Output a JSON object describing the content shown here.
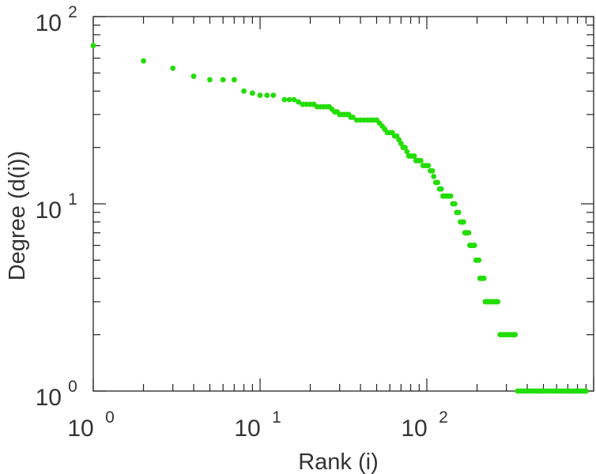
{
  "chart_data": {
    "type": "scatter",
    "title": "",
    "xlabel": "Rank (i)",
    "ylabel": "Degree (d(i))",
    "xscale": "log",
    "yscale": "log",
    "xlim": [
      1,
      1000
    ],
    "ylim": [
      1,
      100
    ],
    "grid": false,
    "legend": "none",
    "marker_color": "#22dd00",
    "x_ticks": [
      {
        "base": "10",
        "exp": "0"
      },
      {
        "base": "10",
        "exp": "1"
      },
      {
        "base": "10",
        "exp": "2"
      }
    ],
    "y_ticks": [
      {
        "base": "10",
        "exp": "0"
      },
      {
        "base": "10",
        "exp": "1"
      },
      {
        "base": "10",
        "exp": "2"
      }
    ],
    "series": [
      {
        "points": [
          [
            1,
            70
          ],
          [
            2,
            58
          ],
          [
            3,
            53
          ],
          [
            4,
            48
          ],
          [
            5,
            46
          ],
          [
            6,
            46
          ],
          [
            7,
            46
          ],
          [
            8,
            40
          ],
          [
            9,
            39
          ],
          [
            10,
            38
          ],
          [
            11,
            38
          ],
          [
            12,
            38
          ],
          [
            14,
            36
          ],
          [
            15,
            36
          ],
          [
            16,
            36
          ],
          [
            17,
            35
          ],
          [
            18,
            34
          ],
          [
            19,
            34
          ],
          [
            20,
            34
          ],
          [
            21,
            34
          ],
          [
            22,
            33
          ],
          [
            23,
            33
          ],
          [
            24,
            33
          ],
          [
            25,
            33
          ],
          [
            26,
            33
          ],
          [
            27,
            32
          ],
          [
            28,
            31
          ],
          [
            29,
            31
          ],
          [
            30,
            30
          ],
          [
            31,
            30
          ],
          [
            32,
            30
          ],
          [
            33,
            30
          ],
          [
            34,
            30
          ],
          [
            35,
            29
          ],
          [
            36,
            29
          ],
          [
            38,
            28
          ],
          [
            40,
            28
          ],
          [
            42,
            28
          ],
          [
            44,
            28
          ],
          [
            46,
            28
          ],
          [
            48,
            28
          ],
          [
            50,
            28
          ],
          [
            52,
            27
          ],
          [
            54,
            26
          ],
          [
            56,
            25
          ],
          [
            58,
            24
          ],
          [
            60,
            24
          ],
          [
            62,
            24
          ],
          [
            64,
            23
          ],
          [
            66,
            23
          ],
          [
            68,
            22
          ],
          [
            70,
            21
          ],
          [
            72,
            20
          ],
          [
            74,
            20
          ],
          [
            76,
            19
          ],
          [
            78,
            18
          ],
          [
            80,
            18
          ],
          [
            82,
            18
          ],
          [
            84,
            18
          ],
          [
            86,
            17
          ],
          [
            88,
            17
          ],
          [
            90,
            17
          ],
          [
            92,
            17
          ],
          [
            95,
            16
          ],
          [
            98,
            16
          ],
          [
            100,
            16
          ],
          [
            102,
            16
          ],
          [
            105,
            15
          ],
          [
            108,
            15
          ],
          [
            110,
            14
          ],
          [
            113,
            13
          ],
          [
            116,
            13
          ],
          [
            119,
            12
          ],
          [
            122,
            12
          ],
          [
            125,
            11
          ],
          [
            128,
            11
          ],
          [
            131,
            11
          ],
          [
            135,
            11
          ],
          [
            139,
            11
          ],
          [
            143,
            10
          ],
          [
            147,
            10
          ],
          [
            151,
            9
          ],
          [
            155,
            9
          ],
          [
            159,
            8
          ],
          [
            163,
            8
          ],
          [
            166,
            8
          ],
          [
            169,
            7
          ],
          [
            172,
            7
          ],
          [
            175,
            7
          ],
          [
            178,
            7
          ],
          [
            181,
            6
          ],
          [
            185,
            6
          ],
          [
            189,
            6
          ],
          [
            193,
            6
          ],
          [
            197,
            5
          ],
          [
            201,
            5
          ],
          [
            205,
            5
          ],
          [
            208,
            4
          ],
          [
            212,
            4
          ],
          [
            216,
            4
          ],
          [
            220,
            4
          ],
          [
            224,
            3
          ],
          [
            230,
            3
          ],
          [
            236,
            3
          ],
          [
            242,
            3
          ],
          [
            248,
            3
          ],
          [
            254,
            3
          ],
          [
            260,
            3
          ],
          [
            266,
            3
          ],
          [
            275,
            2
          ],
          [
            282,
            2
          ],
          [
            289,
            2
          ],
          [
            296,
            2
          ],
          [
            303,
            2
          ],
          [
            310,
            2
          ],
          [
            317,
            2
          ],
          [
            324,
            2
          ],
          [
            331,
            2
          ],
          [
            338,
            2
          ],
          [
            350,
            1
          ],
          [
            365,
            1
          ],
          [
            380,
            1
          ],
          [
            395,
            1
          ],
          [
            410,
            1
          ],
          [
            425,
            1
          ],
          [
            440,
            1
          ],
          [
            455,
            1
          ],
          [
            470,
            1
          ],
          [
            485,
            1
          ],
          [
            500,
            1
          ],
          [
            520,
            1
          ],
          [
            540,
            1
          ],
          [
            560,
            1
          ],
          [
            580,
            1
          ],
          [
            600,
            1
          ],
          [
            620,
            1
          ],
          [
            640,
            1
          ],
          [
            660,
            1
          ],
          [
            680,
            1
          ],
          [
            700,
            1
          ],
          [
            720,
            1
          ],
          [
            740,
            1
          ],
          [
            760,
            1
          ],
          [
            780,
            1
          ],
          [
            800,
            1
          ],
          [
            820,
            1
          ],
          [
            840,
            1
          ],
          [
            860,
            1
          ],
          [
            880,
            1
          ],
          [
            900,
            1
          ]
        ]
      }
    ]
  }
}
